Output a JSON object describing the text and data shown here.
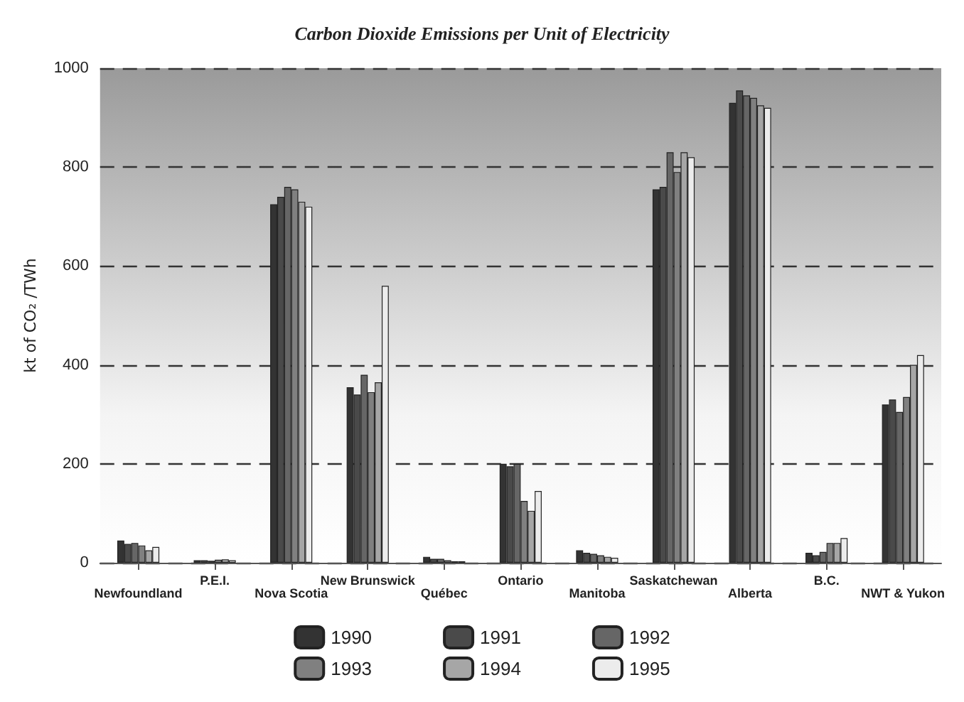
{
  "chart_data": {
    "type": "bar",
    "title": "Carbon Dioxide Emissions per Unit of Electricity",
    "ylabel": "kt of CO₂ /TWh",
    "categories": [
      "Newfoundland",
      "P.E.I.",
      "Nova Scotia",
      "New Brunswick",
      "Québec",
      "Ontario",
      "Manitoba",
      "Saskatchewan",
      "Alberta",
      "B.C.",
      "NWT & Yukon"
    ],
    "series": [
      {
        "name": "1990",
        "color": "#333333",
        "values": [
          45,
          5,
          725,
          355,
          12,
          200,
          25,
          755,
          930,
          20,
          320
        ]
      },
      {
        "name": "1991",
        "color": "#4a4a4a",
        "values": [
          38,
          5,
          740,
          340,
          8,
          195,
          20,
          760,
          955,
          15,
          330
        ]
      },
      {
        "name": "1992",
        "color": "#666666",
        "values": [
          40,
          4,
          760,
          380,
          8,
          200,
          18,
          830,
          945,
          22,
          305
        ]
      },
      {
        "name": "1993",
        "color": "#808080",
        "values": [
          35,
          6,
          755,
          345,
          5,
          125,
          15,
          790,
          940,
          40,
          335
        ]
      },
      {
        "name": "1994",
        "color": "#a6a6a6",
        "values": [
          25,
          7,
          730,
          365,
          3,
          105,
          12,
          830,
          925,
          40,
          400
        ]
      },
      {
        "name": "1995",
        "color": "#ececec",
        "values": [
          32,
          5,
          720,
          560,
          3,
          145,
          10,
          820,
          920,
          50,
          420
        ]
      }
    ],
    "ylim": [
      0,
      1000
    ],
    "yticks": [
      0,
      200,
      400,
      600,
      800,
      1000
    ],
    "grid": "y",
    "legend": "bottom"
  }
}
